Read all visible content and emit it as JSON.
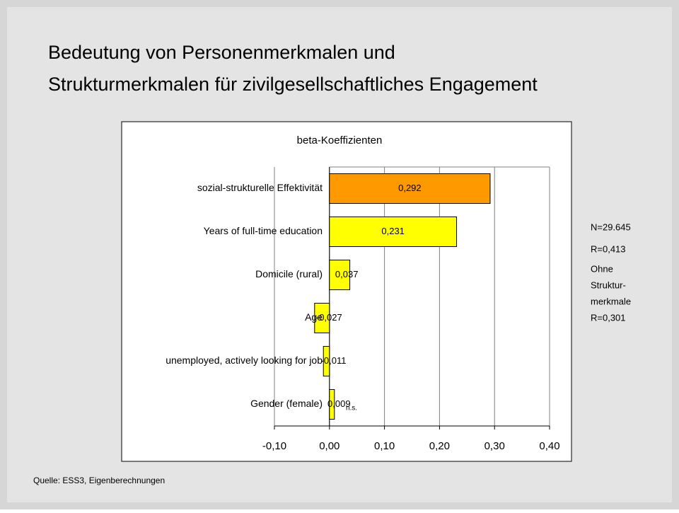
{
  "chart_data": {
    "type": "barh",
    "title": [
      "Bedeutung von Personenmerkmalen und",
      "Strukturmerkmalen für zivilgesellschaftliches Engagement"
    ],
    "subtitle": "beta-Koeffizienten",
    "categories": [
      "sozial-strukturelle Effektivität",
      "Years of full-time education",
      "Domicile (rural)",
      "Age",
      "unemployed, actively looking for job",
      "Gender (female)"
    ],
    "values": [
      0.292,
      0.231,
      0.037,
      -0.027,
      -0.011,
      0.009
    ],
    "value_labels": [
      "0,292",
      "0,231",
      "0,037",
      "-0,027",
      "-0,011",
      "0,009"
    ],
    "colors": [
      "#ff9900",
      "#ffff00",
      "#ffff00",
      "#ffff00",
      "#ffff00",
      "#ffff00"
    ],
    "xlim": [
      -0.1,
      0.4
    ],
    "xticks": [
      {
        "value": -0.1,
        "label": "-0,10"
      },
      {
        "value": 0,
        "label": "0,00"
      },
      {
        "value": 0.1,
        "label": "0,10"
      },
      {
        "value": 0.2,
        "label": "0,20"
      },
      {
        "value": 0.3,
        "label": "0,30"
      },
      {
        "value": 0.4,
        "label": "0,40"
      }
    ],
    "grid": true,
    "annotations": [
      "n.s."
    ],
    "notes": [
      "N=29.645",
      "R=0,413",
      "Ohne",
      "Struktur-",
      "merkmale",
      "R=0,301"
    ],
    "source": "Quelle: ESS3, Eigenberechnungen"
  }
}
